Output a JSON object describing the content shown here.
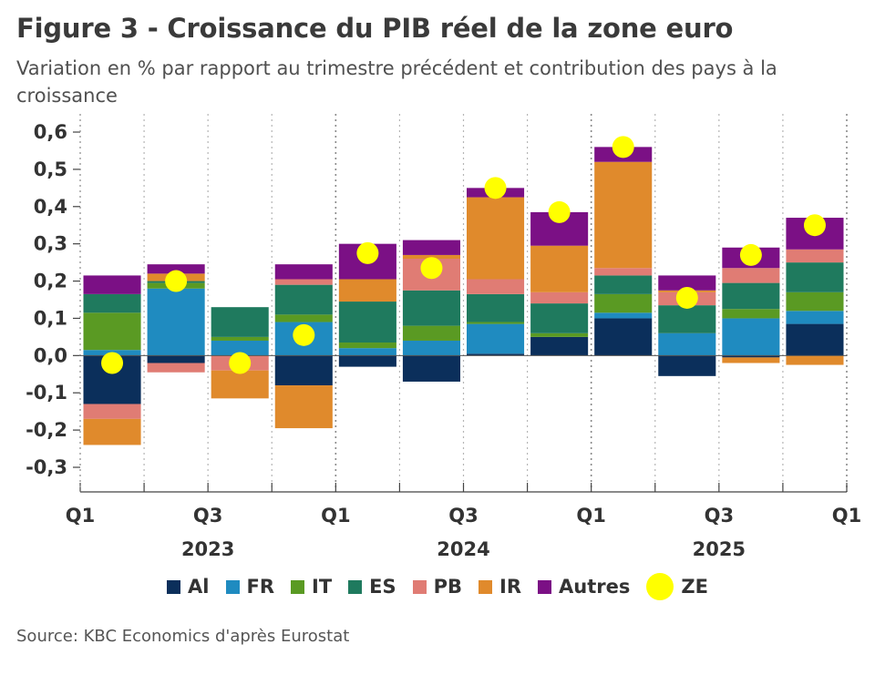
{
  "title": "Figure 3 - Croissance du PIB réel de la zone euro",
  "subtitle": "Variation en % par rapport au trimestre précédent et contribution des pays à la croissance",
  "source": "Source: KBC Economics d'après Eurostat",
  "chart_data": {
    "type": "bar",
    "stacked": true,
    "grid": "vertical dotted lines at year boundaries",
    "legend_position": "bottom",
    "ylim": [
      -0.3,
      0.6
    ],
    "y_ticks": [
      "0,6",
      "0,5",
      "0,4",
      "0,3",
      "0,2",
      "0,1",
      "0,0",
      "-0,1",
      "-0,2",
      "-0,3"
    ],
    "y_tick_values": [
      0.6,
      0.5,
      0.4,
      0.3,
      0.2,
      0.1,
      0.0,
      -0.1,
      -0.2,
      -0.3
    ],
    "x_tick_labels": [
      "Q1",
      "Q3",
      "Q1",
      "Q3",
      "Q1",
      "Q3",
      "Q1"
    ],
    "year_labels": [
      "2023",
      "2024",
      "2025"
    ],
    "categories": [
      "2023 Q1",
      "2023 Q2",
      "2023 Q3",
      "2023 Q4",
      "2024 Q1",
      "2024 Q2",
      "2024 Q3",
      "2024 Q4",
      "2025 Q1",
      "2025 Q2",
      "2025 Q3",
      "2025 Q4"
    ],
    "series": [
      {
        "name": "Al",
        "color": "#0b2f5b",
        "values": [
          -0.13,
          -0.02,
          0.0,
          -0.08,
          -0.03,
          -0.07,
          0.005,
          0.05,
          0.1,
          -0.055,
          -0.005,
          0.085
        ]
      },
      {
        "name": "FR",
        "color": "#1f8bc0",
        "values": [
          0.015,
          0.18,
          0.04,
          0.09,
          0.02,
          0.04,
          0.08,
          0.0,
          0.015,
          0.06,
          0.1,
          0.035
        ]
      },
      {
        "name": "IT",
        "color": "#5a9a23",
        "values": [
          0.1,
          0.015,
          0.01,
          0.02,
          0.015,
          0.04,
          0.005,
          0.01,
          0.05,
          0.0,
          0.025,
          0.05
        ]
      },
      {
        "name": "ES",
        "color": "#1f7a5e",
        "values": [
          0.05,
          0.005,
          0.08,
          0.08,
          0.11,
          0.095,
          0.075,
          0.08,
          0.05,
          0.075,
          0.07,
          0.08
        ]
      },
      {
        "name": "PB",
        "color": "#e07c74",
        "values": [
          -0.04,
          -0.025,
          -0.04,
          0.015,
          0.0,
          0.085,
          0.04,
          0.03,
          0.02,
          0.035,
          0.04,
          0.035
        ]
      },
      {
        "name": "IR",
        "color": "#e08a2c",
        "values": [
          -0.07,
          0.02,
          -0.075,
          -0.115,
          0.06,
          0.01,
          0.22,
          0.125,
          0.285,
          0.005,
          -0.015,
          -0.025
        ]
      },
      {
        "name": "Autres",
        "color": "#7b1085",
        "values": [
          0.05,
          0.025,
          0.0,
          0.04,
          0.095,
          0.04,
          0.025,
          0.09,
          0.04,
          0.04,
          0.055,
          0.085
        ]
      }
    ],
    "total": {
      "name": "ZE",
      "color": "#ffff00",
      "values": [
        -0.02,
        0.2,
        -0.02,
        0.055,
        0.275,
        0.235,
        0.45,
        0.385,
        0.56,
        0.155,
        0.27,
        0.35
      ]
    }
  }
}
